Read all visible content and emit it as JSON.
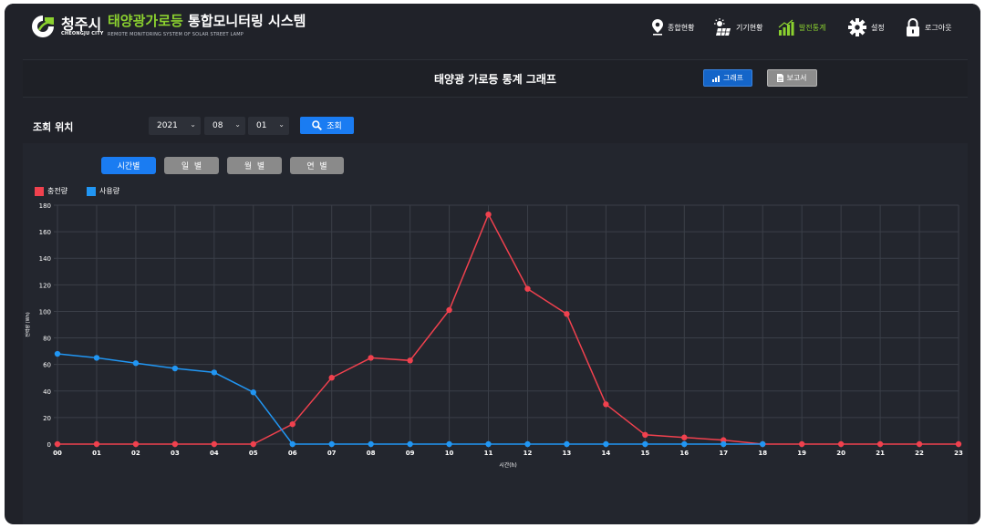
{
  "header": {
    "city_name": "청주시",
    "city_en": "CHEONGJU CITY",
    "title_highlight": "태양광가로등",
    "title_rest": " 통합모니터링 시스템",
    "subtitle": "REMOTE MONITORING SYSTEM OF SOLAR STREET LAMP",
    "brand_color": "#8bd12f",
    "nav": [
      {
        "label": "종합현황",
        "icon": "map-pin-icon"
      },
      {
        "label": "기기현황",
        "icon": "solar-panel-icon"
      },
      {
        "label": "발전통계",
        "icon": "bar-chart-icon",
        "active": true
      },
      {
        "label": "설정",
        "icon": "gear-icon"
      },
      {
        "label": "로그아웃",
        "icon": "lock-icon"
      }
    ]
  },
  "titlebar": {
    "title": "태양광 가로등 통계 그래프",
    "graph_button": "그래프",
    "report_button": "보고서"
  },
  "query": {
    "label": "조회 위치",
    "year": "2021",
    "month": "08",
    "day": "01",
    "search_button": "조회"
  },
  "tabs": [
    {
      "label": "시간별",
      "active": true
    },
    {
      "label": "일  별",
      "active": false
    },
    {
      "label": "월  별",
      "active": false
    },
    {
      "label": "연  별",
      "active": false
    }
  ],
  "chart_data": {
    "type": "line",
    "xlabel": "시간(h)",
    "ylabel": "전력량 (Wh)",
    "ylim": [
      0,
      180
    ],
    "yticks": [
      0,
      20,
      40,
      60,
      80,
      100,
      120,
      140,
      160,
      180
    ],
    "grid": true,
    "legend_position": "top-left",
    "categories": [
      "00",
      "01",
      "02",
      "03",
      "04",
      "05",
      "06",
      "07",
      "08",
      "09",
      "10",
      "11",
      "12",
      "13",
      "14",
      "15",
      "16",
      "17",
      "18",
      "19",
      "20",
      "21",
      "22",
      "23"
    ],
    "series": [
      {
        "name": "충전량",
        "color": "#f0414e",
        "values": [
          0,
          0,
          0,
          0,
          0,
          0,
          15,
          50,
          65,
          63,
          101,
          173,
          117,
          98,
          30,
          7,
          5,
          3,
          0,
          0,
          0,
          0,
          0,
          0
        ]
      },
      {
        "name": "사용량",
        "color": "#2196f3",
        "values": [
          68,
          65,
          61,
          57,
          54,
          39,
          0,
          0,
          0,
          0,
          0,
          0,
          0,
          0,
          0,
          0,
          0,
          0,
          0,
          null,
          null,
          null,
          null,
          null
        ]
      }
    ]
  }
}
